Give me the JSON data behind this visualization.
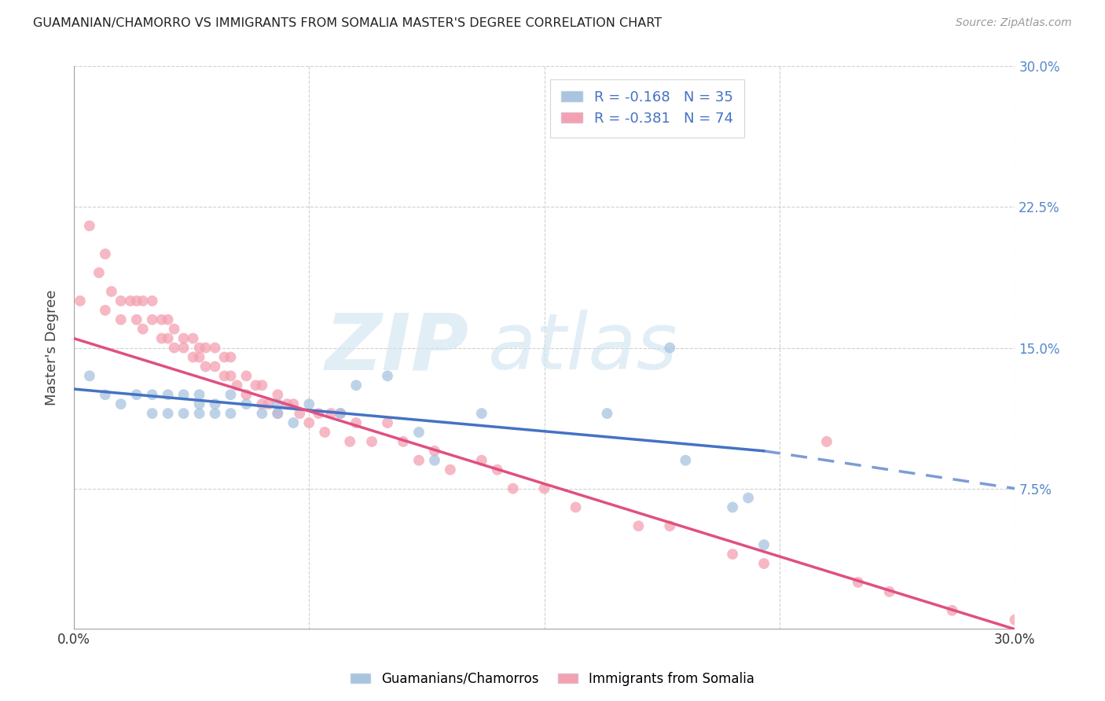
{
  "title": "GUAMANIAN/CHAMORRO VS IMMIGRANTS FROM SOMALIA MASTER'S DEGREE CORRELATION CHART",
  "source": "Source: ZipAtlas.com",
  "ylabel": "Master's Degree",
  "xlim": [
    0.0,
    0.3
  ],
  "ylim": [
    0.0,
    0.3
  ],
  "blue_R": -0.168,
  "blue_N": 35,
  "pink_R": -0.381,
  "pink_N": 74,
  "blue_color": "#a8c4e0",
  "pink_color": "#f4a0b0",
  "blue_line_color": "#4472c4",
  "pink_line_color": "#e05080",
  "legend_label_blue": "Guamanians/Chamorros",
  "legend_label_pink": "Immigrants from Somalia",
  "blue_scatter_x": [
    0.005,
    0.01,
    0.015,
    0.02,
    0.025,
    0.025,
    0.03,
    0.03,
    0.035,
    0.035,
    0.04,
    0.04,
    0.04,
    0.045,
    0.045,
    0.05,
    0.05,
    0.055,
    0.06,
    0.065,
    0.065,
    0.07,
    0.075,
    0.085,
    0.09,
    0.1,
    0.11,
    0.115,
    0.13,
    0.17,
    0.19,
    0.195,
    0.21,
    0.215,
    0.22
  ],
  "blue_scatter_y": [
    0.135,
    0.125,
    0.12,
    0.125,
    0.115,
    0.125,
    0.115,
    0.125,
    0.115,
    0.125,
    0.115,
    0.12,
    0.125,
    0.115,
    0.12,
    0.115,
    0.125,
    0.12,
    0.115,
    0.115,
    0.12,
    0.11,
    0.12,
    0.115,
    0.13,
    0.135,
    0.105,
    0.09,
    0.115,
    0.115,
    0.15,
    0.09,
    0.065,
    0.07,
    0.045
  ],
  "pink_scatter_x": [
    0.002,
    0.005,
    0.008,
    0.01,
    0.01,
    0.012,
    0.015,
    0.015,
    0.018,
    0.02,
    0.02,
    0.022,
    0.022,
    0.025,
    0.025,
    0.028,
    0.028,
    0.03,
    0.03,
    0.032,
    0.032,
    0.035,
    0.035,
    0.038,
    0.038,
    0.04,
    0.04,
    0.042,
    0.042,
    0.045,
    0.045,
    0.048,
    0.048,
    0.05,
    0.05,
    0.052,
    0.055,
    0.055,
    0.058,
    0.06,
    0.06,
    0.062,
    0.065,
    0.065,
    0.068,
    0.07,
    0.072,
    0.075,
    0.078,
    0.08,
    0.082,
    0.085,
    0.088,
    0.09,
    0.095,
    0.1,
    0.105,
    0.11,
    0.115,
    0.12,
    0.13,
    0.135,
    0.14,
    0.15,
    0.16,
    0.18,
    0.19,
    0.21,
    0.22,
    0.24,
    0.25,
    0.26,
    0.28,
    0.3
  ],
  "pink_scatter_y": [
    0.175,
    0.215,
    0.19,
    0.2,
    0.17,
    0.18,
    0.175,
    0.165,
    0.175,
    0.165,
    0.175,
    0.16,
    0.175,
    0.165,
    0.175,
    0.155,
    0.165,
    0.155,
    0.165,
    0.15,
    0.16,
    0.155,
    0.15,
    0.145,
    0.155,
    0.145,
    0.15,
    0.14,
    0.15,
    0.14,
    0.15,
    0.135,
    0.145,
    0.135,
    0.145,
    0.13,
    0.135,
    0.125,
    0.13,
    0.12,
    0.13,
    0.12,
    0.125,
    0.115,
    0.12,
    0.12,
    0.115,
    0.11,
    0.115,
    0.105,
    0.115,
    0.115,
    0.1,
    0.11,
    0.1,
    0.11,
    0.1,
    0.09,
    0.095,
    0.085,
    0.09,
    0.085,
    0.075,
    0.075,
    0.065,
    0.055,
    0.055,
    0.04,
    0.035,
    0.1,
    0.025,
    0.02,
    0.01,
    0.005
  ],
  "blue_line_start_x": 0.0,
  "blue_line_start_y": 0.128,
  "blue_line_end_solid_x": 0.22,
  "blue_line_end_solid_y": 0.095,
  "blue_line_end_dash_x": 0.3,
  "blue_line_end_dash_y": 0.075,
  "pink_line_start_x": 0.0,
  "pink_line_start_y": 0.155,
  "pink_line_end_x": 0.3,
  "pink_line_end_y": 0.0,
  "watermark_line1": "ZIP",
  "watermark_line2": "atlas",
  "background_color": "#ffffff",
  "grid_color": "#d0d0d0",
  "title_color": "#222222",
  "axis_label_color": "#444444",
  "right_tick_color": "#5588cc"
}
